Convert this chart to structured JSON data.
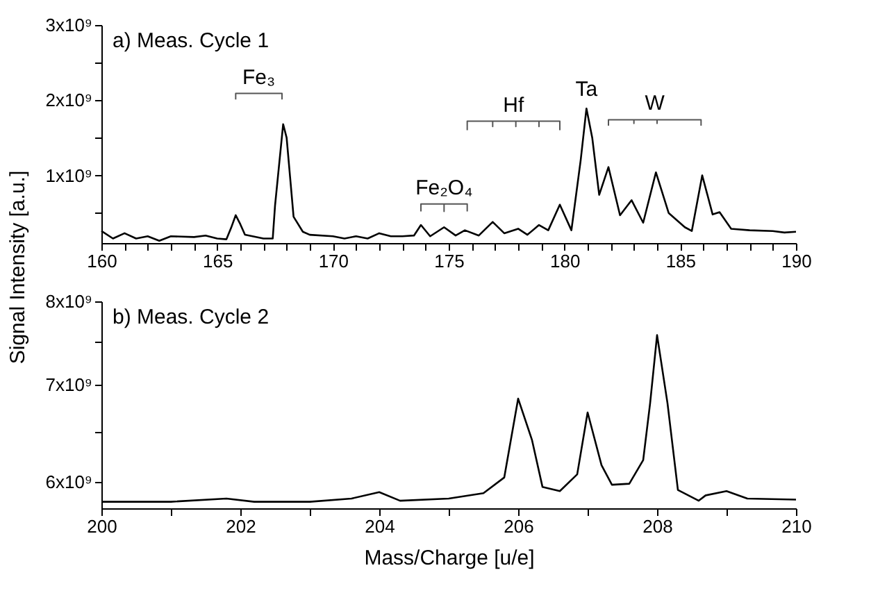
{
  "chart_data": [
    {
      "type": "line",
      "title": "a) Meas. Cycle 1",
      "ylabel": "Signal Intensity [a.u.]",
      "xlim": [
        160,
        190
      ],
      "ylim": [
        100000000.0,
        3000000000.0
      ],
      "grid": false,
      "xticks": [
        160,
        {
          "value": 161,
          "label": null
        },
        {
          "value": 162,
          "label": null
        },
        {
          "value": 163,
          "label": null
        },
        {
          "value": 164,
          "label": null
        },
        165,
        {
          "value": 166,
          "label": null
        },
        {
          "value": 167,
          "label": null
        },
        {
          "value": 168,
          "label": null
        },
        {
          "value": 169,
          "label": null
        },
        170,
        {
          "value": 171,
          "label": null
        },
        {
          "value": 172,
          "label": null
        },
        {
          "value": 173,
          "label": null
        },
        {
          "value": 174,
          "label": null
        },
        175,
        {
          "value": 176,
          "label": null
        },
        {
          "value": 177,
          "label": null
        },
        {
          "value": 178,
          "label": null
        },
        {
          "value": 179,
          "label": null
        },
        180,
        {
          "value": 181,
          "label": null
        },
        {
          "value": 182,
          "label": null
        },
        {
          "value": 183,
          "label": null
        },
        {
          "value": 184,
          "label": null
        },
        185,
        {
          "value": 186,
          "label": null
        },
        {
          "value": 187,
          "label": null
        },
        {
          "value": 188,
          "label": null
        },
        {
          "value": 189,
          "label": null
        },
        190
      ],
      "yticks": [
        {
          "value": 500000000.0,
          "label": null
        },
        {
          "value": 1000000000.0,
          "label": "1x10⁹"
        },
        {
          "value": 1500000000.0,
          "label": null
        },
        {
          "value": 2000000000.0,
          "label": "2x10⁹"
        },
        {
          "value": 2500000000.0,
          "label": null
        },
        {
          "value": 3000000000.0,
          "label": "3x10⁹"
        }
      ],
      "annotations": [
        {
          "text": "Ta",
          "x": 180.95,
          "y": 1890000000.0
        }
      ],
      "series": [
        {
          "color": "#000000",
          "x": [
            160,
            160.5,
            161,
            161.5,
            162,
            162.5,
            163,
            164,
            164.5,
            165,
            165.4,
            165.6,
            165.8,
            166.0,
            166.2,
            167,
            167.4,
            167.5,
            167.85,
            168.0,
            168.3,
            168.7,
            169,
            170,
            170.5,
            171,
            171.5,
            172,
            172.5,
            173,
            173.5,
            173.8,
            174.2,
            174.8,
            175.3,
            175.7,
            176.3,
            176.9,
            177.4,
            178,
            178.4,
            178.9,
            179.3,
            179.8,
            180.3,
            180.7,
            180.95,
            181.2,
            181.5,
            181.9,
            182.4,
            182.9,
            183.4,
            183.95,
            184.5,
            185.2,
            185.5,
            185.95,
            186.4,
            186.7,
            187.2,
            188,
            189,
            189.5,
            190
          ],
          "values": [
            260000000.0,
            160000000.0,
            230000000.0,
            160000000.0,
            190000000.0,
            130000000.0,
            190000000.0,
            180000000.0,
            200000000.0,
            160000000.0,
            150000000.0,
            300000000.0,
            470000000.0,
            350000000.0,
            210000000.0,
            160000000.0,
            160000000.0,
            600000000.0,
            1680000000.0,
            1500000000.0,
            450000000.0,
            250000000.0,
            210000000.0,
            190000000.0,
            160000000.0,
            190000000.0,
            160000000.0,
            230000000.0,
            190000000.0,
            190000000.0,
            200000000.0,
            340000000.0,
            190000000.0,
            310000000.0,
            200000000.0,
            270000000.0,
            200000000.0,
            380000000.0,
            230000000.0,
            290000000.0,
            210000000.0,
            340000000.0,
            270000000.0,
            610000000.0,
            270000000.0,
            1200000000.0,
            1890000000.0,
            1500000000.0,
            740000000.0,
            1110000000.0,
            470000000.0,
            670000000.0,
            370000000.0,
            1040000000.0,
            500000000.0,
            310000000.0,
            260000000.0,
            1000000000.0,
            480000000.0,
            510000000.0,
            290000000.0,
            270000000.0,
            260000000.0,
            240000000.0,
            250000000.0
          ]
        },
        {
          "name": "Fe₃",
          "color": "#555555",
          "x": [
            165.8,
            165.8,
            167.8,
            167.8
          ],
          "values": [
            2010000000.0,
            2090000000.0,
            2090000000.0,
            2010000000.0
          ]
        },
        {
          "name": "Fe₂O₄",
          "color": "#555555",
          "x": [
            173.8,
            173.8,
            174.8,
            174.8,
            174.8,
            175.8,
            175.8
          ],
          "values": [
            520000000.0,
            620000000.0,
            620000000.0,
            520000000.0,
            620000000.0,
            620000000.0,
            520000000.0
          ]
        },
        {
          "name": "Hf",
          "color": "#555555",
          "x": [
            175.8,
            175.8,
            176.9,
            176.9,
            176.9,
            177.9,
            177.9,
            177.9,
            178.9,
            178.9,
            178.9,
            179.8,
            179.8
          ],
          "values": [
            1600000000.0,
            1720000000.0,
            1720000000.0,
            1650000000.0,
            1720000000.0,
            1720000000.0,
            1650000000.0,
            1720000000.0,
            1720000000.0,
            1650000000.0,
            1720000000.0,
            1720000000.0,
            1600000000.0
          ]
        },
        {
          "name": "W",
          "color": "#555555",
          "x": [
            181.9,
            181.9,
            183.0,
            183.0,
            183.0,
            184.0,
            184.0,
            184.0,
            185.9,
            185.9
          ],
          "values": [
            1660000000.0,
            1740000000.0,
            1740000000.0,
            1690000000.0,
            1740000000.0,
            1740000000.0,
            1690000000.0,
            1740000000.0,
            1740000000.0,
            1660000000.0
          ]
        }
      ]
    },
    {
      "type": "line",
      "title": "b) Meas. Cycle 2",
      "xlabel": "Mass/Charge [u/e]",
      "log": "y",
      "xlim": [
        200,
        210
      ],
      "ylim": [
        5750000000.0,
        8000000000.0
      ],
      "grid": false,
      "xticks": [
        200,
        {
          "value": 201,
          "label": null
        },
        202,
        {
          "value": 203,
          "label": null
        },
        204,
        {
          "value": 205,
          "label": null
        },
        206,
        {
          "value": 207,
          "label": null
        },
        208,
        {
          "value": 209,
          "label": null
        },
        210
      ],
      "yticks": [
        {
          "value": 6000000000.0,
          "label": "6x10⁹"
        },
        {
          "value": 6500000000.0,
          "label": null
        },
        {
          "value": 7000000000.0,
          "label": "7x10⁹"
        },
        {
          "value": 7500000000.0,
          "label": null
        },
        {
          "value": 8000000000.0,
          "label": "8x10⁹"
        }
      ],
      "series": [
        {
          "color": "#000000",
          "x": [
            200,
            201,
            201.8,
            202.2,
            203,
            203.6,
            204,
            204.3,
            205,
            205.5,
            205.8,
            206,
            206.2,
            206.35,
            206.6,
            206.85,
            207,
            207.2,
            207.35,
            207.6,
            207.8,
            207.9,
            208,
            208.15,
            208.3,
            208.6,
            208.7,
            209,
            209.3,
            210
          ],
          "values": [
            5810000000.0,
            5810000000.0,
            5840000000.0,
            5810000000.0,
            5810000000.0,
            5840000000.0,
            5900000000.0,
            5820000000.0,
            5840000000.0,
            5890000000.0,
            6040000000.0,
            6850000000.0,
            6410000000.0,
            5950000000.0,
            5910000000.0,
            6070000000.0,
            6700000000.0,
            6160000000.0,
            5970000000.0,
            5980000000.0,
            6210000000.0,
            6800000000.0,
            7580000000.0,
            6800000000.0,
            5920000000.0,
            5820000000.0,
            5870000000.0,
            5910000000.0,
            5840000000.0,
            5830000000.0
          ]
        }
      ]
    }
  ]
}
